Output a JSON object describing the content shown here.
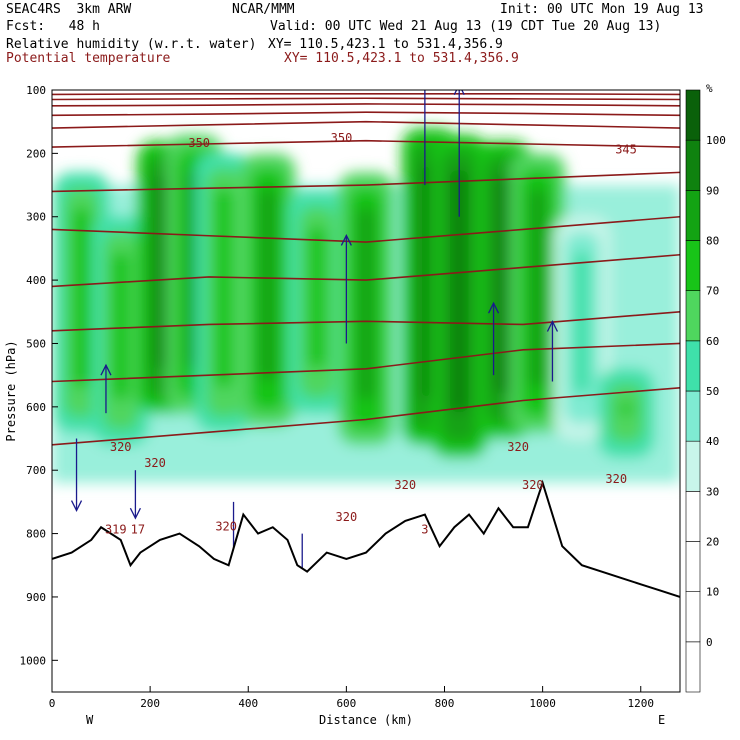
{
  "header": {
    "model": "SEAC4RS  3km ARW",
    "center": "NCAR/MMM",
    "init": "Init: 00 UTC Mon 19 Aug 13",
    "fcst": "Fcst:   48 h",
    "valid": "Valid: 00 UTC Wed 21 Aug 13 (19 CDT Tue 20 Aug 13)",
    "field1": "Relative humidity (w.r.t. water)",
    "field1_xy": "XY= 110.5,423.1 to 531.4,356.9",
    "field2": "Potential temperature",
    "field2_xy": "XY= 110.5,423.1 to 531.4,356.9"
  },
  "chart_data": {
    "type": "heatmap",
    "title": "Relative humidity (w.r.t. water)",
    "xlabel": "Distance (km)",
    "ylabel": "Pressure (hPa)",
    "xlim": [
      0,
      1280
    ],
    "ylim": [
      1050,
      100
    ],
    "x_ticks": [
      0,
      200,
      400,
      600,
      800,
      1000,
      1200
    ],
    "y_ticks": [
      100,
      200,
      300,
      400,
      500,
      600,
      700,
      800,
      900,
      1000
    ],
    "end_labels": {
      "left": "W",
      "right": "E"
    },
    "colorbar": {
      "unit": "%",
      "levels": [
        0,
        10,
        20,
        30,
        40,
        50,
        60,
        70,
        80,
        90,
        100
      ],
      "colors": [
        "#ffffff",
        "#ffffff",
        "#ffffff",
        "#ffffff",
        "#c8f5ea",
        "#7febd2",
        "#3fe0aa",
        "#4fd65e",
        "#18c418",
        "#13a313",
        "#0f820f",
        "#0a610a"
      ]
    },
    "rh_columns": [
      {
        "x": 60,
        "ptop": 230,
        "pbot": 640,
        "rh": 75
      },
      {
        "x": 140,
        "ptop": 300,
        "pbot": 660,
        "rh": 70
      },
      {
        "x": 230,
        "ptop": 180,
        "pbot": 610,
        "rh": 90
      },
      {
        "x": 290,
        "ptop": 170,
        "pbot": 610,
        "rh": 80
      },
      {
        "x": 350,
        "ptop": 200,
        "pbot": 640,
        "rh": 75
      },
      {
        "x": 440,
        "ptop": 200,
        "pbot": 630,
        "rh": 85
      },
      {
        "x": 540,
        "ptop": 260,
        "pbot": 610,
        "rh": 70
      },
      {
        "x": 640,
        "ptop": 230,
        "pbot": 660,
        "rh": 80
      },
      {
        "x": 770,
        "ptop": 160,
        "pbot": 660,
        "rh": 95
      },
      {
        "x": 830,
        "ptop": 170,
        "pbot": 680,
        "rh": 90
      },
      {
        "x": 920,
        "ptop": 180,
        "pbot": 650,
        "rh": 90
      },
      {
        "x": 990,
        "ptop": 200,
        "pbot": 640,
        "rh": 80
      },
      {
        "x": 1080,
        "ptop": 300,
        "pbot": 650,
        "rh": 55
      },
      {
        "x": 1170,
        "ptop": 540,
        "pbot": 680,
        "rh": 70
      }
    ],
    "rh_band": {
      "ptop": 250,
      "pbot": 720,
      "rh": 40
    },
    "theta_isentropes": [
      {
        "p": [
          660,
          640,
          620,
          590,
          570
        ],
        "x": [
          0,
          320,
          640,
          960,
          1280
        ]
      },
      {
        "p": [
          560,
          550,
          540,
          510,
          500
        ],
        "x": [
          0,
          320,
          640,
          960,
          1280
        ]
      },
      {
        "p": [
          480,
          470,
          465,
          470,
          450
        ],
        "x": [
          0,
          320,
          640,
          960,
          1280
        ]
      },
      {
        "p": [
          410,
          395,
          400,
          380,
          360
        ],
        "x": [
          0,
          320,
          640,
          960,
          1280
        ]
      },
      {
        "p": [
          320,
          330,
          340,
          320,
          300
        ],
        "x": [
          0,
          320,
          640,
          960,
          1280
        ]
      },
      {
        "p": [
          260,
          255,
          250,
          240,
          230
        ],
        "x": [
          0,
          320,
          640,
          960,
          1280
        ]
      },
      {
        "p": [
          190,
          185,
          180,
          185,
          190
        ],
        "x": [
          0,
          320,
          640,
          960,
          1280
        ]
      },
      {
        "p": [
          160,
          155,
          150,
          155,
          160
        ],
        "x": [
          0,
          320,
          640,
          960,
          1280
        ]
      },
      {
        "p": [
          140,
          138,
          135,
          137,
          140
        ],
        "x": [
          0,
          320,
          640,
          960,
          1280
        ]
      },
      {
        "p": [
          125,
          124,
          122,
          123,
          125
        ],
        "x": [
          0,
          320,
          640,
          960,
          1280
        ]
      },
      {
        "p": [
          115,
          114,
          113,
          114,
          115
        ],
        "x": [
          0,
          320,
          640,
          960,
          1280
        ]
      },
      {
        "p": [
          107,
          106,
          106,
          106,
          107
        ],
        "x": [
          0,
          320,
          640,
          960,
          1280
        ]
      }
    ],
    "theta_labels": [
      {
        "text": "350",
        "x": 300,
        "p": 190
      },
      {
        "text": "350",
        "x": 590,
        "p": 182
      },
      {
        "text": "345",
        "x": 1170,
        "p": 200
      },
      {
        "text": "320",
        "x": 140,
        "p": 670
      },
      {
        "text": "320",
        "x": 210,
        "p": 695
      },
      {
        "text": "320",
        "x": 355,
        "p": 795
      },
      {
        "text": "320",
        "x": 600,
        "p": 780
      },
      {
        "text": "320",
        "x": 720,
        "p": 730
      },
      {
        "text": "320",
        "x": 950,
        "p": 670
      },
      {
        "text": "320",
        "x": 980,
        "p": 730
      },
      {
        "text": "320",
        "x": 1150,
        "p": 720
      },
      {
        "text": "319",
        "x": 130,
        "p": 800
      },
      {
        "text": "17",
        "x": 175,
        "p": 800
      },
      {
        "text": "3",
        "x": 760,
        "p": 800
      }
    ],
    "terrain": {
      "x": [
        0,
        40,
        80,
        100,
        140,
        160,
        180,
        220,
        260,
        300,
        330,
        360,
        390,
        420,
        450,
        480,
        500,
        520,
        560,
        600,
        640,
        680,
        720,
        760,
        790,
        820,
        850,
        880,
        910,
        940,
        970,
        1000,
        1040,
        1080,
        1120,
        1160,
        1200,
        1240,
        1280
      ],
      "p": [
        840,
        830,
        810,
        790,
        810,
        850,
        830,
        810,
        800,
        820,
        840,
        850,
        770,
        800,
        790,
        810,
        850,
        860,
        830,
        840,
        830,
        800,
        780,
        770,
        820,
        790,
        770,
        800,
        760,
        790,
        790,
        720,
        820,
        850,
        860,
        870,
        880,
        890,
        900
      ]
    },
    "wind_vectors": [
      {
        "x": 50,
        "p": 650,
        "w": -30
      },
      {
        "x": 110,
        "p": 610,
        "w": 20
      },
      {
        "x": 170,
        "p": 700,
        "w": -20
      },
      {
        "x": 370,
        "p": 750,
        "w": -40
      },
      {
        "x": 510,
        "p": 800,
        "w": -60
      },
      {
        "x": 600,
        "p": 500,
        "w": 45
      },
      {
        "x": 760,
        "p": 250,
        "w": 50
      },
      {
        "x": 830,
        "p": 300,
        "w": 55
      },
      {
        "x": 900,
        "p": 550,
        "w": 30
      },
      {
        "x": 1020,
        "p": 560,
        "w": 25
      }
    ]
  }
}
